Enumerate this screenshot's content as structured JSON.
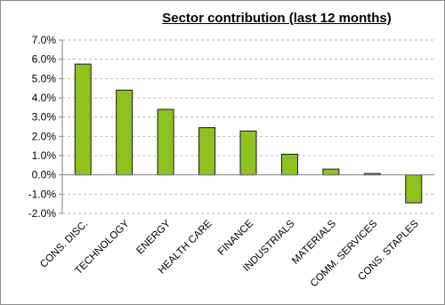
{
  "chart_data": {
    "type": "bar",
    "title": "Sector contribution (last 12 months)",
    "xlabel": "",
    "ylabel": "",
    "categories": [
      "CONS. DISC.",
      "TECHNOLOGY",
      "ENERGY",
      "HEALTH CARE",
      "FINANCE",
      "INDUSTRIALS",
      "MATERIALS",
      "COMM. SERVICES",
      "CONS. STAPLES"
    ],
    "values": [
      5.75,
      4.4,
      3.4,
      2.45,
      2.28,
      1.07,
      0.3,
      0.07,
      -1.45
    ],
    "ylim": [
      -2.0,
      7.0
    ],
    "yticks": [
      "-2.0%",
      "-1.0%",
      "0.0%",
      "1.0%",
      "2.0%",
      "3.0%",
      "4.0%",
      "5.0%",
      "6.0%",
      "7.0%"
    ],
    "grid": true,
    "bar_color": "#8dc21f",
    "bar_edge_color": "#1a1a1a"
  }
}
